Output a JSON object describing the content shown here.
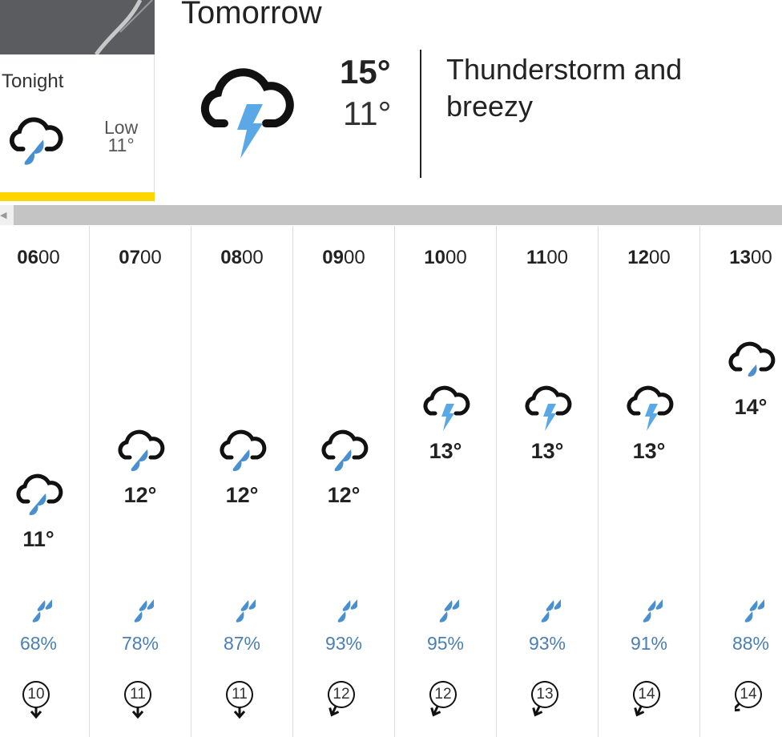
{
  "tonight": {
    "label": "Tonight",
    "low_label": "Low",
    "low": "11°",
    "icon": "rain-cloud-icon"
  },
  "tomorrow": {
    "title": "Tomorrow",
    "high": "15°",
    "low": "11°",
    "description": "Thunderstorm and breezy",
    "icon": "thunder-cloud-icon"
  },
  "colors": {
    "accent": "#ffd500",
    "rain": "#4a90d0",
    "lightning": "#5aa9e6",
    "percent": "#4a7fb5"
  },
  "hours": [
    {
      "h": "06",
      "m": "00",
      "icon": "heavy-rain",
      "temp": "11°",
      "temp_value": 11,
      "rain": "68%",
      "wind": "10",
      "wind_dir": "S"
    },
    {
      "h": "07",
      "m": "00",
      "icon": "heavy-rain",
      "temp": "12°",
      "temp_value": 12,
      "rain": "78%",
      "wind": "11",
      "wind_dir": "S"
    },
    {
      "h": "08",
      "m": "00",
      "icon": "heavy-rain",
      "temp": "12°",
      "temp_value": 12,
      "rain": "87%",
      "wind": "11",
      "wind_dir": "S"
    },
    {
      "h": "09",
      "m": "00",
      "icon": "heavy-rain",
      "temp": "12°",
      "temp_value": 12,
      "rain": "93%",
      "wind": "12",
      "wind_dir": "SSW"
    },
    {
      "h": "10",
      "m": "00",
      "icon": "thunder",
      "temp": "13°",
      "temp_value": 13,
      "rain": "95%",
      "wind": "12",
      "wind_dir": "SSW"
    },
    {
      "h": "11",
      "m": "00",
      "icon": "thunder",
      "temp": "13°",
      "temp_value": 13,
      "rain": "93%",
      "wind": "13",
      "wind_dir": "SSW"
    },
    {
      "h": "12",
      "m": "00",
      "icon": "thunder",
      "temp": "13°",
      "temp_value": 13,
      "rain": "91%",
      "wind": "14",
      "wind_dir": "SSW"
    },
    {
      "h": "13",
      "m": "00",
      "icon": "light-rain",
      "temp": "14°",
      "temp_value": 14,
      "rain": "88%",
      "wind": "14",
      "wind_dir": "SW"
    }
  ]
}
